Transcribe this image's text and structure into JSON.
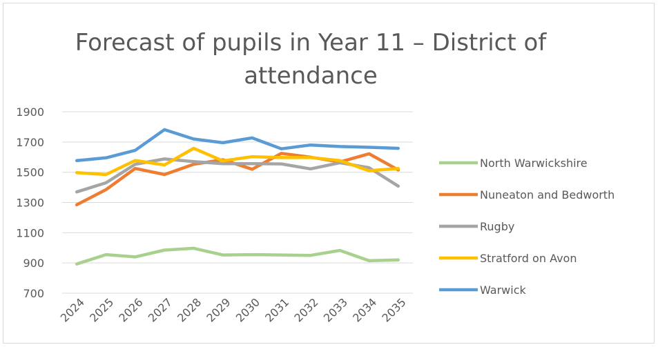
{
  "chart_data": {
    "type": "line",
    "title": "Forecast of pupils in Year 11 – District of attendance",
    "xlabel": "",
    "ylabel": "",
    "categories": [
      "2024",
      "2025",
      "2026",
      "2027",
      "2028",
      "2029",
      "2030",
      "2031",
      "2032",
      "2033",
      "2034",
      "2035"
    ],
    "y_ticks": [
      "700",
      "900",
      "1100",
      "1300",
      "1500",
      "1700",
      "1900"
    ],
    "ylim": [
      700,
      1900
    ],
    "grid": true,
    "legend_position": "right",
    "series": [
      {
        "name": "North Warwickshire",
        "color": "#a9d18e",
        "values": [
          893,
          955,
          940,
          985,
          997,
          953,
          955,
          953,
          950,
          983,
          915,
          920
        ]
      },
      {
        "name": "Nuneaton and Bedworth",
        "color": "#ed7d31",
        "values": [
          1285,
          1385,
          1525,
          1485,
          1553,
          1583,
          1520,
          1625,
          1600,
          1568,
          1622,
          1515
        ]
      },
      {
        "name": "Rugby",
        "color": "#a5a5a5",
        "values": [
          1370,
          1430,
          1553,
          1588,
          1570,
          1557,
          1557,
          1555,
          1522,
          1563,
          1530,
          1408
        ]
      },
      {
        "name": "Stratford on Avon",
        "color": "#ffc000",
        "values": [
          1497,
          1485,
          1578,
          1548,
          1658,
          1575,
          1603,
          1597,
          1597,
          1577,
          1510,
          1525
        ]
      },
      {
        "name": "Warwick",
        "color": "#5b9bd5",
        "values": [
          1577,
          1595,
          1645,
          1782,
          1720,
          1695,
          1727,
          1655,
          1680,
          1670,
          1665,
          1658
        ]
      }
    ]
  }
}
